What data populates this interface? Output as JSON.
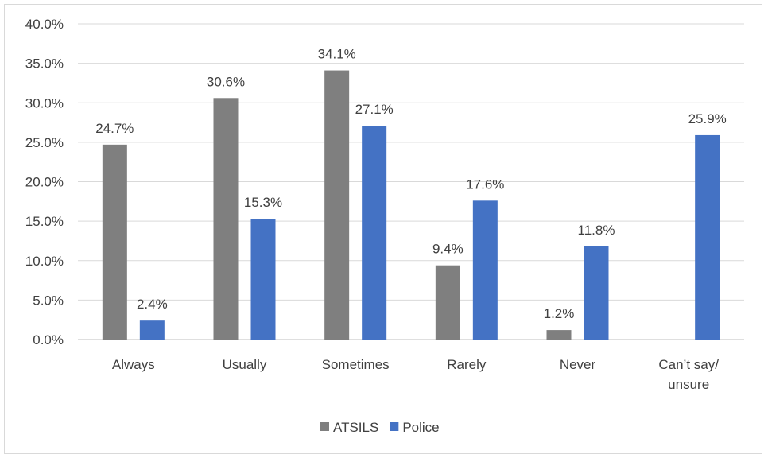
{
  "chart_data": {
    "type": "bar",
    "categories": [
      "Always",
      "Usually",
      "Sometimes",
      "Rarely",
      "Never",
      "Can’t say/ unsure"
    ],
    "series": [
      {
        "name": "ATSILS",
        "color": "#7f7f7f",
        "values": [
          24.7,
          30.6,
          34.1,
          9.4,
          1.2,
          null
        ]
      },
      {
        "name": "Police",
        "color": "#4472c4",
        "values": [
          2.4,
          15.3,
          27.1,
          17.6,
          11.8,
          25.9
        ]
      }
    ],
    "data_labels": [
      [
        "24.7%",
        "30.6%",
        "34.1%",
        "9.4%",
        "1.2%",
        null
      ],
      [
        "2.4%",
        "15.3%",
        "27.1%",
        "17.6%",
        "11.8%",
        "25.9%"
      ]
    ],
    "ylim": [
      0,
      40
    ],
    "yticks": [
      "0.0%",
      "5.0%",
      "10.0%",
      "15.0%",
      "20.0%",
      "25.0%",
      "30.0%",
      "35.0%",
      "40.0%"
    ],
    "grid": true,
    "legend_position": "bottom",
    "xlabel": "",
    "ylabel": ""
  }
}
